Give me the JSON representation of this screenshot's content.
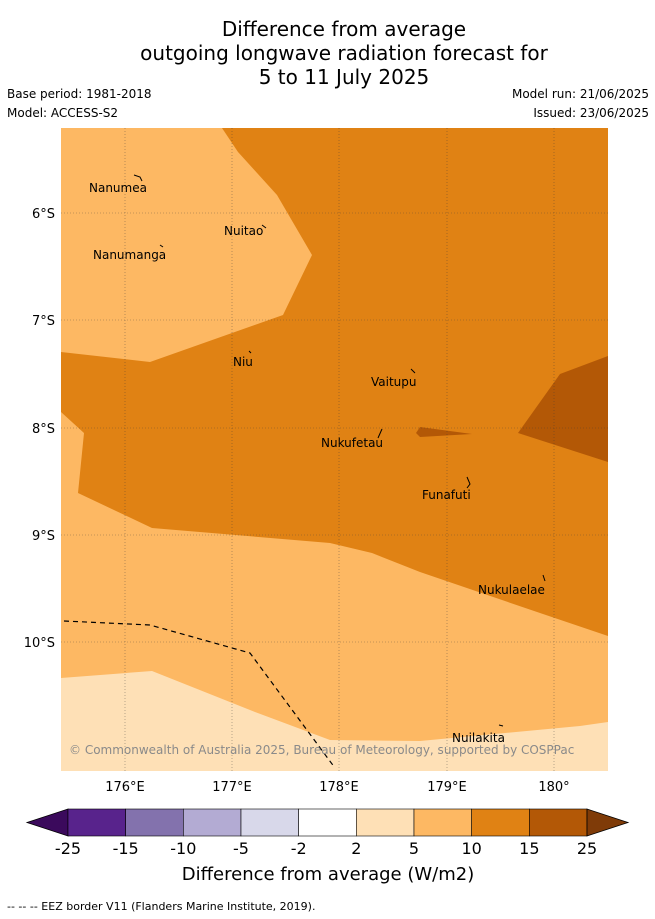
{
  "title": {
    "line1": "Difference from average",
    "line2": "outgoing longwave radiation forecast for",
    "line3": "5 to 11 July 2025"
  },
  "meta": {
    "base_period": "Base period: 1981-2018",
    "model": "Model: ACCESS-S2",
    "model_run": "Model run: 21/06/2025",
    "issued": "Issued: 23/06/2025"
  },
  "map": {
    "lon_ticks": [
      "176°E",
      "177°E",
      "178°E",
      "179°E",
      "180°"
    ],
    "lat_ticks": [
      "6°S",
      "7°S",
      "8°S",
      "9°S",
      "10°S"
    ],
    "places": [
      "Nanumea",
      "Nuitao",
      "Nanumanga",
      "Niu",
      "Vaitupu",
      "Nukufetau",
      "Funafuti",
      "Nukulaelae",
      "Nuilakita"
    ],
    "copyright": "© Commonwealth of Australia 2025, Bureau of Meteorology, supported by COSPPac"
  },
  "colorbar": {
    "ticks": [
      "-25",
      "-15",
      "-10",
      "-5",
      "-2",
      "2",
      "5",
      "10",
      "15",
      "25"
    ],
    "colors": [
      "#3b0a5c",
      "#58238c",
      "#8372ad",
      "#b3abd3",
      "#d8d8ea",
      "#ffffff",
      "#fee0b6",
      "#fdb863",
      "#e08214",
      "#b35806",
      "#7f3b08"
    ],
    "label": "Difference from average (W/m2)"
  },
  "legend": {
    "eez": "-- -- -- EEZ border V11 (Flanders Marine Institute, 2019)."
  }
}
